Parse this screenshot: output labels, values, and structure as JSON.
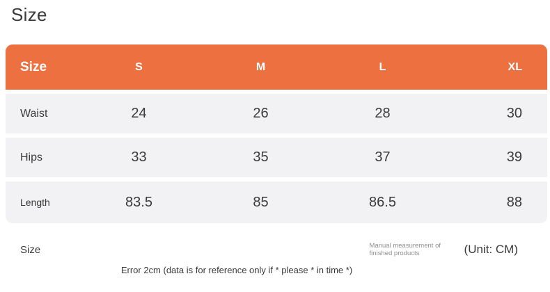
{
  "page": {
    "title": "Size"
  },
  "table": {
    "header": {
      "label": "Size",
      "columns": [
        "S",
        "M",
        "L",
        "XL"
      ]
    },
    "rows": [
      {
        "label": "Waist",
        "values": [
          "24",
          "26",
          "28",
          "30"
        ]
      },
      {
        "label": "Hips",
        "values": [
          "33",
          "35",
          "37",
          "39"
        ]
      },
      {
        "label": "Length",
        "values": [
          "83.5",
          "85",
          "86.5",
          "88"
        ]
      }
    ],
    "footer": {
      "label": "Size",
      "note": "Manual measurement of finished products",
      "unit": "(Unit: CM)"
    }
  },
  "disclaimer": "Error 2cm (data is for reference only if * please * in time *)",
  "colors": {
    "header_bg": "#ec7040",
    "header_text": "#ffffff",
    "row_bg": "#f2f2f4",
    "text": "#3a3a3a",
    "note_text": "#8e8e8e",
    "background": "#ffffff"
  }
}
